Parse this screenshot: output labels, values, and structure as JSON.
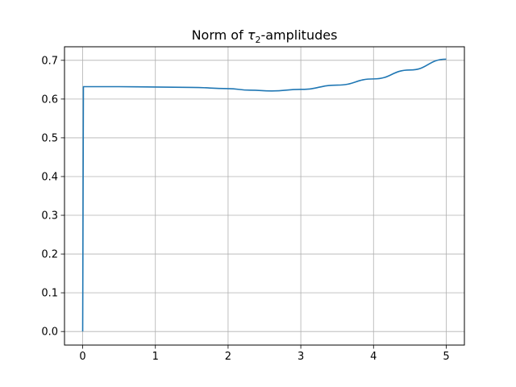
{
  "chart_data": {
    "type": "line",
    "title": {
      "prefix": "Norm of ",
      "symbol": "τ",
      "subscript": "2",
      "suffix": "-amplitudes"
    },
    "xlabel": "",
    "ylabel": "",
    "xlim": [
      -0.25,
      5.25
    ],
    "ylim": [
      -0.035,
      0.735
    ],
    "xticks": [
      0,
      1,
      2,
      3,
      4,
      5
    ],
    "xtick_labels": [
      "0",
      "1",
      "2",
      "3",
      "4",
      "5"
    ],
    "yticks": [
      0.0,
      0.1,
      0.2,
      0.3,
      0.4,
      0.5,
      0.6,
      0.7
    ],
    "ytick_labels": [
      "0.0",
      "0.1",
      "0.2",
      "0.3",
      "0.4",
      "0.5",
      "0.6",
      "0.7"
    ],
    "grid": true,
    "series": [
      {
        "color": "#1f77b4",
        "x": [
          0.0,
          0.01,
          0.5,
          1.0,
          1.5,
          2.0,
          2.3,
          2.6,
          3.0,
          3.5,
          4.0,
          4.5,
          5.0
        ],
        "y": [
          0.0,
          0.632,
          0.632,
          0.631,
          0.63,
          0.627,
          0.623,
          0.621,
          0.625,
          0.636,
          0.652,
          0.675,
          0.703
        ]
      }
    ]
  }
}
